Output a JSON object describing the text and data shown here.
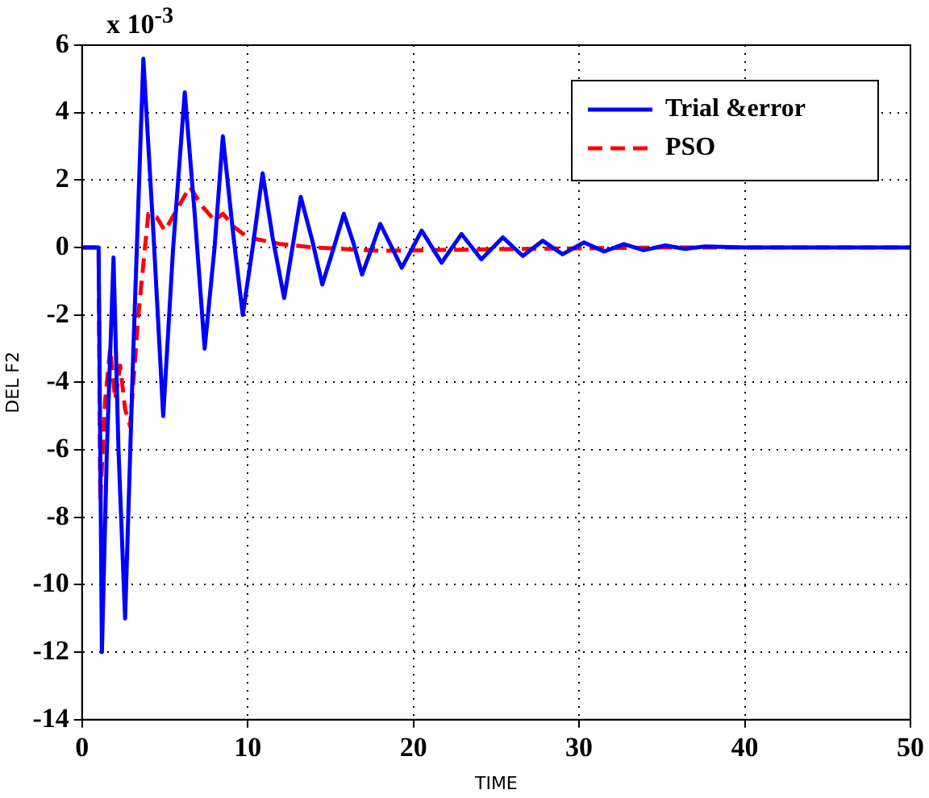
{
  "chart_data": {
    "type": "line",
    "xlabel": "TIME",
    "ylabel": "DEL F2",
    "annotations": [
      "x 10$^{-3}$"
    ],
    "xlim": [
      0,
      50
    ],
    "xticks": [
      0,
      10,
      20,
      30,
      40,
      50
    ],
    "ylim": [
      -14,
      6
    ],
    "yticks": [
      -14,
      -12,
      -10,
      -8,
      -6,
      -4,
      -2,
      0,
      2,
      4,
      6
    ],
    "grid": true,
    "legend": "top right",
    "marker": "none",
    "series": [
      {
        "name": "Trial &error",
        "color": "#0000ff",
        "line_style": "solid",
        "x": [
          0,
          1.0,
          1.2,
          1.5,
          1.9,
          2.2,
          2.6,
          3.1,
          3.7,
          4.3,
          4.9,
          5.5,
          6.2,
          6.8,
          7.4,
          8.0,
          8.5,
          9.1,
          9.7,
          10.3,
          10.9,
          11.5,
          12.2,
          12.7,
          13.2,
          13.9,
          14.5,
          15.2,
          15.8,
          16.4,
          16.9,
          17.5,
          18.0,
          19.3,
          20.5,
          21.7,
          22.9,
          24.1,
          25.4,
          26.6,
          27.8,
          29.0,
          30.3,
          31.5,
          32.7,
          33.9,
          35.2,
          36.4,
          37.6,
          40,
          45,
          50
        ],
        "values": [
          0,
          0,
          -12,
          -6,
          -0.3,
          -6,
          -11,
          -3,
          5.6,
          0.5,
          -5,
          0,
          4.6,
          1,
          -3,
          0,
          3.3,
          0.5,
          -2,
          0,
          2.2,
          0.3,
          -1.5,
          0,
          1.5,
          0.2,
          -1.1,
          0,
          1.0,
          0.1,
          -0.8,
          0,
          0.7,
          -0.6,
          0.5,
          -0.45,
          0.4,
          -0.35,
          0.3,
          -0.25,
          0.2,
          -0.2,
          0.15,
          -0.12,
          0.1,
          -0.08,
          0.06,
          -0.04,
          0.03,
          0,
          0,
          0
        ]
      },
      {
        "name": "PSO",
        "color": "#ff0000",
        "line_style": "dashed",
        "x": [
          0,
          1.0,
          1.1,
          1.4,
          1.7,
          2.0,
          2.3,
          2.6,
          2.9,
          3.4,
          4.0,
          4.5,
          5.0,
          5.7,
          6.5,
          7.3,
          8.0,
          8.5,
          9.2,
          10,
          11,
          12,
          14,
          18,
          25,
          35,
          50
        ],
        "values": [
          0,
          0,
          -7.5,
          -4.5,
          -3,
          -4.5,
          -3.5,
          -4.8,
          -5.3,
          -2,
          1.0,
          0.9,
          0.5,
          1.1,
          1.8,
          1.2,
          0.8,
          1.0,
          0.6,
          0.3,
          0.2,
          0.1,
          0,
          -0.1,
          -0.05,
          0,
          0
        ]
      }
    ]
  }
}
